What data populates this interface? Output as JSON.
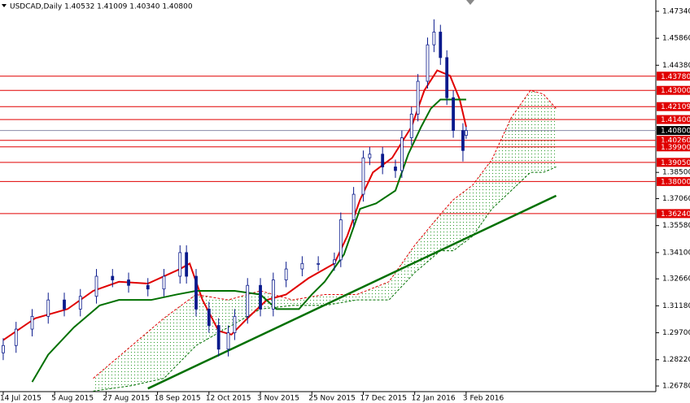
{
  "chart_data": {
    "type": "candlestick",
    "title": "USDCAD,Daily  1.40532 1.41009 1.40340 1.40800",
    "candle_color": "#0a1a8c",
    "candles": {
      "x": [
        0,
        4,
        9,
        14,
        19,
        24,
        29,
        34,
        39,
        45,
        50,
        55,
        57,
        60,
        64,
        67,
        70,
        72,
        76,
        80,
        84,
        88,
        93,
        98,
        103,
        105,
        109,
        112,
        114,
        118,
        122,
        124,
        127,
        129,
        132,
        134,
        136,
        138,
        140,
        143,
        144
      ],
      "open": [
        1.286,
        1.29,
        1.299,
        1.306,
        1.315,
        1.31,
        1.317,
        1.328,
        1.326,
        1.323,
        1.321,
        1.328,
        1.341,
        1.328,
        1.31,
        1.301,
        1.288,
        1.297,
        1.306,
        1.323,
        1.31,
        1.326,
        1.332,
        1.335,
        1.335,
        1.337,
        1.359,
        1.373,
        1.393,
        1.395,
        1.388,
        1.386,
        1.404,
        1.417,
        1.435,
        1.455,
        1.462,
        1.448,
        1.426,
        1.408,
        1.40532
      ],
      "high": [
        1.294,
        1.303,
        1.31,
        1.319,
        1.319,
        1.321,
        1.332,
        1.332,
        1.33,
        1.327,
        1.332,
        1.345,
        1.345,
        1.332,
        1.314,
        1.305,
        1.301,
        1.31,
        1.327,
        1.327,
        1.33,
        1.336,
        1.339,
        1.339,
        1.341,
        1.363,
        1.377,
        1.397,
        1.399,
        1.399,
        1.392,
        1.408,
        1.421,
        1.439,
        1.459,
        1.469,
        1.466,
        1.452,
        1.43,
        1.412,
        1.41009
      ],
      "low": [
        1.282,
        1.286,
        1.295,
        1.302,
        1.306,
        1.306,
        1.313,
        1.322,
        1.319,
        1.317,
        1.317,
        1.324,
        1.324,
        1.306,
        1.297,
        1.284,
        1.284,
        1.293,
        1.302,
        1.306,
        1.306,
        1.322,
        1.328,
        1.331,
        1.331,
        1.333,
        1.355,
        1.369,
        1.389,
        1.384,
        1.382,
        1.382,
        1.4,
        1.413,
        1.431,
        1.451,
        1.444,
        1.422,
        1.404,
        1.391,
        1.4034
      ],
      "close": [
        1.29,
        1.299,
        1.306,
        1.315,
        1.31,
        1.317,
        1.328,
        1.326,
        1.323,
        1.321,
        1.328,
        1.341,
        1.328,
        1.31,
        1.301,
        1.288,
        1.297,
        1.306,
        1.323,
        1.31,
        1.326,
        1.332,
        1.335,
        1.335,
        1.337,
        1.359,
        1.373,
        1.393,
        1.395,
        1.388,
        1.386,
        1.404,
        1.417,
        1.435,
        1.455,
        1.462,
        1.448,
        1.426,
        1.408,
        1.397,
        1.408
      ]
    },
    "lines": [
      {
        "color": "#e00000",
        "x": [
          0,
          10,
          20,
          28,
          36,
          45,
          55,
          58,
          62,
          67,
          71,
          76,
          82,
          88,
          95,
          103,
          107,
          111,
          115,
          121,
          127,
          131,
          135,
          139,
          142,
          144
        ],
        "values": [
          1.293,
          1.305,
          1.31,
          1.32,
          1.325,
          1.324,
          1.332,
          1.335,
          1.315,
          1.298,
          1.296,
          1.305,
          1.315,
          1.318,
          1.327,
          1.335,
          1.35,
          1.37,
          1.385,
          1.393,
          1.41,
          1.43,
          1.441,
          1.438,
          1.425,
          1.41
        ]
      },
      {
        "color": "#007000",
        "x": [
          9,
          14,
          22,
          30,
          36,
          46,
          54,
          60,
          72,
          80,
          85,
          92,
          96,
          100,
          106,
          111,
          116,
          122,
          126,
          130,
          133,
          136,
          140,
          144
        ],
        "values": [
          1.27,
          1.285,
          1.3,
          1.312,
          1.315,
          1.315,
          1.318,
          1.32,
          1.32,
          1.318,
          1.31,
          1.31,
          1.318,
          1.325,
          1.34,
          1.365,
          1.368,
          1.375,
          1.395,
          1.41,
          1.42,
          1.425,
          1.425,
          1.425
        ]
      }
    ],
    "cloud": {
      "x": [
        28,
        40,
        50,
        60,
        70,
        80,
        90,
        100,
        110,
        120,
        128,
        136,
        140,
        146,
        152,
        158,
        164,
        168,
        172
      ],
      "upper": [
        1.272,
        1.29,
        1.305,
        1.318,
        1.315,
        1.32,
        1.315,
        1.318,
        1.318,
        1.325,
        1.345,
        1.362,
        1.37,
        1.378,
        1.392,
        1.415,
        1.43,
        1.428,
        1.42
      ],
      "lower": [
        1.265,
        1.268,
        1.272,
        1.29,
        1.3,
        1.31,
        1.312,
        1.312,
        1.315,
        1.315,
        1.33,
        1.342,
        1.342,
        1.35,
        1.365,
        1.375,
        1.385,
        1.385,
        1.388
      ],
      "upper_color": "#e00000",
      "lower_color": "#007000"
    },
    "trendline": {
      "color": "#007000",
      "x": [
        45,
        172
      ],
      "values": [
        1.2664,
        1.3722
      ]
    },
    "levels": [
      {
        "value": 1.4378,
        "label": "1.43780",
        "color": "#e00000"
      },
      {
        "value": 1.43,
        "label": "1.43000",
        "color": "#e00000"
      },
      {
        "value": 1.42109,
        "label": "1.42109",
        "color": "#e00000"
      },
      {
        "value": 1.414,
        "label": "1.41400",
        "color": "#e00000"
      },
      {
        "value": 1.4026,
        "label": "1.40260",
        "color": "#e00000"
      },
      {
        "value": 1.399,
        "label": "1.39900",
        "color": "#e00000"
      },
      {
        "value": 1.3905,
        "label": "1.39050",
        "color": "#e00000"
      },
      {
        "value": 1.38,
        "label": "1.38000",
        "color": "#e00000"
      },
      {
        "value": 1.3624,
        "label": "1.36240",
        "color": "#e00000"
      },
      {
        "value": 1.408,
        "label": "1.40800",
        "color": "#000000",
        "line_color": "#8a8aa8"
      }
    ],
    "xlim": [
      -1,
      203
    ],
    "ylim": [
      1.2647,
      1.4796
    ],
    "yticks": [
      {
        "value": 1.4734,
        "label": "1.47340"
      },
      {
        "value": 1.4586,
        "label": "1.45860"
      },
      {
        "value": 1.4438,
        "label": "1.44380"
      },
      {
        "value": 1.385,
        "label": "1.38500"
      },
      {
        "value": 1.3706,
        "label": "1.37060"
      },
      {
        "value": 1.3558,
        "label": "1.35580"
      },
      {
        "value": 1.341,
        "label": "1.34100"
      },
      {
        "value": 1.3266,
        "label": "1.32660"
      },
      {
        "value": 1.3118,
        "label": "1.31180"
      },
      {
        "value": 1.297,
        "label": "1.29700"
      },
      {
        "value": 1.2822,
        "label": "1.28220"
      },
      {
        "value": 1.2678,
        "label": "1.26780"
      }
    ],
    "xticks": [
      {
        "value": 0,
        "label": "14 Jul 2015"
      },
      {
        "value": 16,
        "label": "5 Aug 2015"
      },
      {
        "value": 32,
        "label": "27 Aug 2015"
      },
      {
        "value": 48,
        "label": "18 Sep 2015"
      },
      {
        "value": 64,
        "label": "12 Oct 2015"
      },
      {
        "value": 80,
        "label": "3 Nov 2015"
      },
      {
        "value": 96,
        "label": "25 Nov 2015"
      },
      {
        "value": 112,
        "label": "17 Dec 2015"
      },
      {
        "value": 128,
        "label": "12 Jan 2016"
      },
      {
        "value": 144,
        "label": "3 Feb 2016"
      }
    ]
  }
}
